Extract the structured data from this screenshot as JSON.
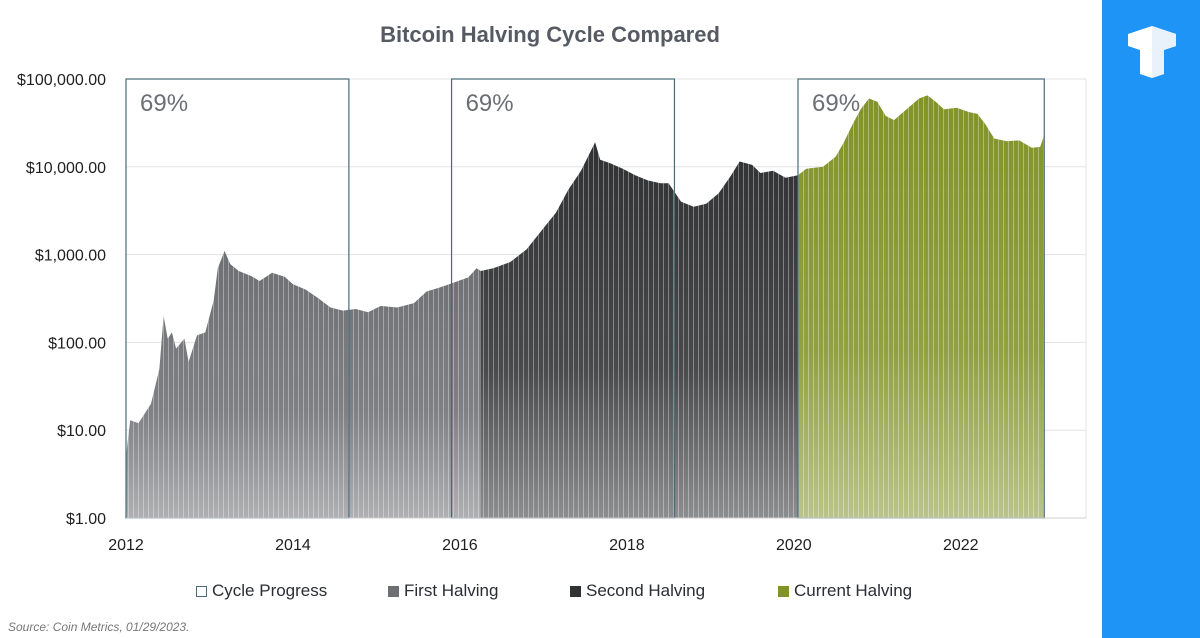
{
  "chart_data": {
    "type": "area",
    "title": "Bitcoin Halving Cycle Compared",
    "y_scale": "log",
    "ylim": [
      1,
      100000
    ],
    "xlim": [
      2012,
      2023.5
    ],
    "y_ticks": [
      {
        "value": 1,
        "label": "$1.00"
      },
      {
        "value": 10,
        "label": "$10.00"
      },
      {
        "value": 100,
        "label": "$100.00"
      },
      {
        "value": 1000,
        "label": "$1,000.00"
      },
      {
        "value": 10000,
        "label": "$10,000.00"
      },
      {
        "value": 100000,
        "label": "$100,000.00"
      }
    ],
    "x_ticks": [
      {
        "value": 2012,
        "label": "2012"
      },
      {
        "value": 2014,
        "label": "2014"
      },
      {
        "value": 2016,
        "label": "2016"
      },
      {
        "value": 2018,
        "label": "2018"
      },
      {
        "value": 2020,
        "label": "2020"
      },
      {
        "value": 2022,
        "label": "2022"
      }
    ],
    "cycle_boxes": [
      {
        "start": 2012.0,
        "end": 2014.67,
        "label": "69%"
      },
      {
        "start": 2015.9,
        "end": 2018.57,
        "label": "69%"
      },
      {
        "start": 2020.05,
        "end": 2023.0,
        "label": "69%"
      }
    ],
    "legend_position": "bottom",
    "series": [
      {
        "name": "First Halving",
        "color": "#6e6f73",
        "points": [
          [
            2012.0,
            5
          ],
          [
            2012.05,
            13
          ],
          [
            2012.15,
            12
          ],
          [
            2012.3,
            20
          ],
          [
            2012.4,
            50
          ],
          [
            2012.45,
            200
          ],
          [
            2012.5,
            110
          ],
          [
            2012.55,
            130
          ],
          [
            2012.6,
            85
          ],
          [
            2012.7,
            110
          ],
          [
            2012.75,
            60
          ],
          [
            2012.85,
            120
          ],
          [
            2012.95,
            130
          ],
          [
            2013.05,
            300
          ],
          [
            2013.1,
            700
          ],
          [
            2013.18,
            1100
          ],
          [
            2013.25,
            780
          ],
          [
            2013.35,
            650
          ],
          [
            2013.5,
            570
          ],
          [
            2013.6,
            500
          ],
          [
            2013.75,
            620
          ],
          [
            2013.9,
            560
          ],
          [
            2014.0,
            460
          ],
          [
            2014.15,
            400
          ],
          [
            2014.3,
            320
          ],
          [
            2014.45,
            250
          ],
          [
            2014.6,
            230
          ],
          [
            2014.75,
            240
          ],
          [
            2014.9,
            220
          ],
          [
            2015.05,
            260
          ],
          [
            2015.25,
            250
          ],
          [
            2015.45,
            280
          ],
          [
            2015.6,
            380
          ],
          [
            2015.75,
            420
          ],
          [
            2015.9,
            470
          ],
          [
            2016.1,
            550
          ],
          [
            2016.2,
            700
          ],
          [
            2016.25,
            650
          ]
        ]
      },
      {
        "name": "Second Halving",
        "color": "#2f3133",
        "points": [
          [
            2016.25,
            650
          ],
          [
            2016.4,
            700
          ],
          [
            2016.6,
            820
          ],
          [
            2016.8,
            1150
          ],
          [
            2017.0,
            2000
          ],
          [
            2017.15,
            3000
          ],
          [
            2017.3,
            5500
          ],
          [
            2017.45,
            9000
          ],
          [
            2017.55,
            14000
          ],
          [
            2017.62,
            19000
          ],
          [
            2017.68,
            12000
          ],
          [
            2017.8,
            11000
          ],
          [
            2017.95,
            9500
          ],
          [
            2018.1,
            8000
          ],
          [
            2018.25,
            7000
          ],
          [
            2018.4,
            6500
          ],
          [
            2018.5,
            6500
          ],
          [
            2018.65,
            4000
          ],
          [
            2018.8,
            3500
          ],
          [
            2018.95,
            3800
          ],
          [
            2019.1,
            5000
          ],
          [
            2019.25,
            8000
          ],
          [
            2019.35,
            11500
          ],
          [
            2019.5,
            10500
          ],
          [
            2019.6,
            8500
          ],
          [
            2019.75,
            9000
          ],
          [
            2019.9,
            7500
          ],
          [
            2020.05,
            8000
          ]
        ]
      },
      {
        "name": "Current Halving",
        "color": "#829329",
        "points": [
          [
            2020.05,
            8000
          ],
          [
            2020.15,
            9500
          ],
          [
            2020.35,
            10000
          ],
          [
            2020.5,
            13000
          ],
          [
            2020.6,
            19000
          ],
          [
            2020.7,
            30000
          ],
          [
            2020.8,
            45000
          ],
          [
            2020.9,
            60000
          ],
          [
            2021.0,
            55000
          ],
          [
            2021.1,
            38000
          ],
          [
            2021.2,
            34000
          ],
          [
            2021.35,
            45000
          ],
          [
            2021.5,
            60000
          ],
          [
            2021.6,
            65000
          ],
          [
            2021.7,
            55000
          ],
          [
            2021.8,
            45000
          ],
          [
            2021.95,
            47000
          ],
          [
            2022.1,
            42000
          ],
          [
            2022.2,
            40000
          ],
          [
            2022.3,
            30000
          ],
          [
            2022.4,
            21000
          ],
          [
            2022.55,
            19500
          ],
          [
            2022.7,
            20000
          ],
          [
            2022.85,
            16500
          ],
          [
            2022.95,
            16800
          ],
          [
            2023.0,
            23000
          ]
        ]
      }
    ]
  },
  "legend": {
    "items": [
      {
        "label": "Cycle Progress",
        "swatch_color": "#ffffff",
        "border_color": "#4a6a7a"
      },
      {
        "label": "First Halving",
        "swatch_color": "#6e6f73",
        "border_color": "#6e6f73"
      },
      {
        "label": "Second Halving",
        "swatch_color": "#2f3133",
        "border_color": "#2f3133"
      },
      {
        "label": "Current Halving",
        "swatch_color": "#829329",
        "border_color": "#829329"
      }
    ]
  },
  "source_note": "Source: Coin Metrics, 01/29/2023.",
  "brand": {
    "color": "#1e95f6"
  }
}
